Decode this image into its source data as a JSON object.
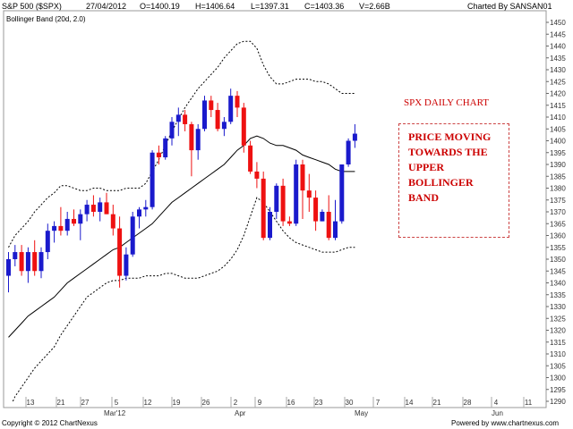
{
  "header": {
    "symbol": "S&P 500 ($SPX)",
    "date": "27/04/2012",
    "open": "O=1400.19",
    "high": "H=1406.64",
    "low": "L=1397.31",
    "close": "C=1403.36",
    "volume": "V=2.66B",
    "charted_by": "Charted By SANSAN01",
    "indicator": "Bollinger Band (20d, 2.0)"
  },
  "footer": {
    "copyright": "Copyright © 2012 ChartNexus",
    "powered": "Powered by www.chartnexus.com"
  },
  "annotation": {
    "title": "SPX DAILY CHART",
    "text": "PRICE MOVING\nTOWARDS THE\nUPPER\nBOLLINGER\nBAND"
  },
  "colors": {
    "up": "#1a1acc",
    "down": "#ee1111",
    "band": "#000000",
    "annotation": "#cc0000"
  },
  "chart_data": {
    "type": "candlestick",
    "ylim": [
      1290,
      1450
    ],
    "y_ticks": [
      1290,
      1295,
      1300,
      1305,
      1310,
      1315,
      1320,
      1325,
      1330,
      1335,
      1340,
      1345,
      1350,
      1355,
      1360,
      1365,
      1370,
      1375,
      1380,
      1385,
      1390,
      1395,
      1400,
      1405,
      1410,
      1415,
      1420,
      1425,
      1430,
      1435,
      1440,
      1445,
      1450
    ],
    "x_tick_labels": [
      "13",
      "21",
      "27",
      "5",
      "12",
      "19",
      "26",
      "2",
      "9",
      "16",
      "23",
      "30",
      "7",
      "14",
      "21",
      "28",
      "4",
      "11"
    ],
    "month_labels": [
      "Mar'12",
      "Apr",
      "May",
      "Jun"
    ],
    "candles": [
      {
        "o": 1343,
        "h": 1353,
        "l": 1336,
        "c": 1350
      },
      {
        "o": 1350,
        "h": 1356,
        "l": 1347,
        "c": 1353
      },
      {
        "o": 1353,
        "h": 1356,
        "l": 1343,
        "c": 1345
      },
      {
        "o": 1345,
        "h": 1355,
        "l": 1340,
        "c": 1353
      },
      {
        "o": 1353,
        "h": 1358,
        "l": 1343,
        "c": 1345
      },
      {
        "o": 1345,
        "h": 1355,
        "l": 1342,
        "c": 1353
      },
      {
        "o": 1353,
        "h": 1365,
        "l": 1350,
        "c": 1362
      },
      {
        "o": 1362,
        "h": 1366,
        "l": 1357,
        "c": 1364
      },
      {
        "o": 1364,
        "h": 1372,
        "l": 1360,
        "c": 1362
      },
      {
        "o": 1362,
        "h": 1370,
        "l": 1360,
        "c": 1367
      },
      {
        "o": 1367,
        "h": 1371,
        "l": 1364,
        "c": 1365
      },
      {
        "o": 1365,
        "h": 1371,
        "l": 1358,
        "c": 1369
      },
      {
        "o": 1369,
        "h": 1375,
        "l": 1366,
        "c": 1373
      },
      {
        "o": 1373,
        "h": 1377,
        "l": 1368,
        "c": 1370
      },
      {
        "o": 1370,
        "h": 1376,
        "l": 1366,
        "c": 1374
      },
      {
        "o": 1374,
        "h": 1378,
        "l": 1369,
        "c": 1369
      },
      {
        "o": 1369,
        "h": 1373,
        "l": 1360,
        "c": 1363
      },
      {
        "o": 1363,
        "h": 1368,
        "l": 1338,
        "c": 1343
      },
      {
        "o": 1343,
        "h": 1355,
        "l": 1341,
        "c": 1352
      },
      {
        "o": 1352,
        "h": 1370,
        "l": 1351,
        "c": 1368
      },
      {
        "o": 1368,
        "h": 1372,
        "l": 1363,
        "c": 1371
      },
      {
        "o": 1371,
        "h": 1375,
        "l": 1368,
        "c": 1372
      },
      {
        "o": 1372,
        "h": 1396,
        "l": 1371,
        "c": 1395
      },
      {
        "o": 1395,
        "h": 1398,
        "l": 1390,
        "c": 1393
      },
      {
        "o": 1393,
        "h": 1402,
        "l": 1392,
        "c": 1401
      },
      {
        "o": 1401,
        "h": 1410,
        "l": 1398,
        "c": 1408
      },
      {
        "o": 1408,
        "h": 1414,
        "l": 1402,
        "c": 1411
      },
      {
        "o": 1411,
        "h": 1413,
        "l": 1404,
        "c": 1407
      },
      {
        "o": 1407,
        "h": 1408,
        "l": 1385,
        "c": 1396
      },
      {
        "o": 1396,
        "h": 1407,
        "l": 1392,
        "c": 1405
      },
      {
        "o": 1405,
        "h": 1419,
        "l": 1404,
        "c": 1417
      },
      {
        "o": 1417,
        "h": 1419,
        "l": 1410,
        "c": 1413
      },
      {
        "o": 1413,
        "h": 1416,
        "l": 1404,
        "c": 1405
      },
      {
        "o": 1405,
        "h": 1410,
        "l": 1402,
        "c": 1408
      },
      {
        "o": 1408,
        "h": 1422,
        "l": 1407,
        "c": 1419
      },
      {
        "o": 1419,
        "h": 1421,
        "l": 1410,
        "c": 1414
      },
      {
        "o": 1414,
        "h": 1416,
        "l": 1395,
        "c": 1398
      },
      {
        "o": 1398,
        "h": 1400,
        "l": 1386,
        "c": 1387
      },
      {
        "o": 1387,
        "h": 1391,
        "l": 1380,
        "c": 1384
      },
      {
        "o": 1384,
        "h": 1387,
        "l": 1358,
        "c": 1359
      },
      {
        "o": 1359,
        "h": 1372,
        "l": 1358,
        "c": 1370
      },
      {
        "o": 1370,
        "h": 1382,
        "l": 1367,
        "c": 1381
      },
      {
        "o": 1381,
        "h": 1384,
        "l": 1364,
        "c": 1366
      },
      {
        "o": 1366,
        "h": 1368,
        "l": 1364,
        "c": 1365
      },
      {
        "o": 1365,
        "h": 1392,
        "l": 1364,
        "c": 1390
      },
      {
        "o": 1390,
        "h": 1392,
        "l": 1367,
        "c": 1379
      },
      {
        "o": 1379,
        "h": 1386,
        "l": 1370,
        "c": 1376
      },
      {
        "o": 1376,
        "h": 1379,
        "l": 1362,
        "c": 1366
      },
      {
        "o": 1366,
        "h": 1371,
        "l": 1366,
        "c": 1370
      },
      {
        "o": 1370,
        "h": 1377,
        "l": 1358,
        "c": 1359
      },
      {
        "o": 1359,
        "h": 1375,
        "l": 1358,
        "c": 1366
      },
      {
        "o": 1366,
        "h": 1390,
        "l": 1365,
        "c": 1390
      },
      {
        "o": 1390,
        "h": 1401,
        "l": 1389,
        "c": 1400
      },
      {
        "o": 1400,
        "h": 1407,
        "l": 1397,
        "c": 1403
      }
    ],
    "middle_band": [
      1317,
      1320,
      1323,
      1326,
      1328,
      1330,
      1332,
      1334,
      1337,
      1340,
      1342,
      1344,
      1346,
      1348,
      1350,
      1352,
      1354,
      1355,
      1357,
      1359,
      1361,
      1363,
      1365,
      1368,
      1371,
      1374,
      1376,
      1378,
      1380,
      1382,
      1384,
      1386,
      1388,
      1390,
      1393,
      1396,
      1398,
      1401,
      1402,
      1401,
      1399,
      1398,
      1398,
      1397,
      1396,
      1394,
      1393,
      1392,
      1391,
      1390,
      1388,
      1387,
      1387,
      1387
    ],
    "upper_band": [
      1355,
      1360,
      1363,
      1366,
      1370,
      1373,
      1376,
      1378,
      1381,
      1381,
      1380,
      1379,
      1379,
      1380,
      1380,
      1379,
      1379,
      1379,
      1380,
      1380,
      1380,
      1382,
      1387,
      1392,
      1398,
      1404,
      1409,
      1414,
      1418,
      1422,
      1425,
      1428,
      1431,
      1435,
      1438,
      1441,
      1442,
      1442,
      1439,
      1432,
      1427,
      1424,
      1424,
      1425,
      1426,
      1426,
      1426,
      1425,
      1425,
      1424,
      1422,
      1420,
      1420,
      1420
    ],
    "lower_band": [
      1286,
      1292,
      1296,
      1300,
      1304,
      1307,
      1310,
      1313,
      1318,
      1322,
      1326,
      1330,
      1334,
      1336,
      1338,
      1340,
      1341,
      1341,
      1342,
      1342,
      1342,
      1343,
      1343,
      1343,
      1344,
      1344,
      1343,
      1342,
      1342,
      1342,
      1343,
      1344,
      1345,
      1347,
      1350,
      1354,
      1360,
      1368,
      1376,
      1374,
      1370,
      1366,
      1362,
      1359,
      1357,
      1356,
      1355,
      1354,
      1353,
      1353,
      1353,
      1354,
      1355,
      1355
    ]
  }
}
